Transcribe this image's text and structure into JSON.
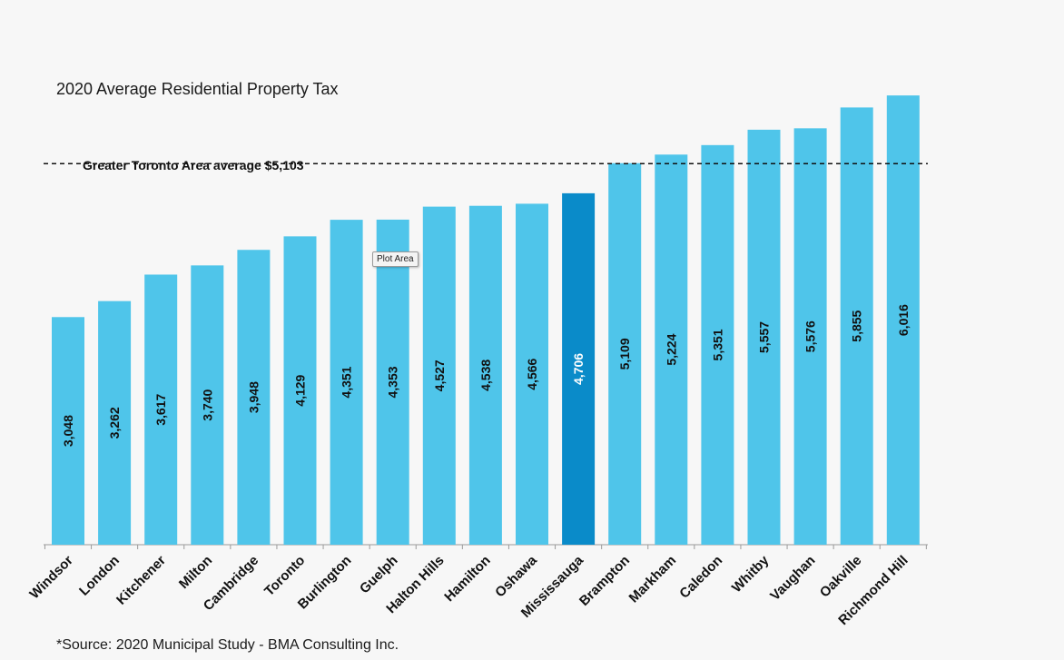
{
  "chart_data": {
    "type": "bar",
    "title": "2020 Average Residential Property Tax",
    "categories": [
      "Windsor",
      "London",
      "Kitchener",
      "Milton",
      "Cambridge",
      "Toronto",
      "Burlington",
      "Guelph",
      "Halton Hills",
      "Hamilton",
      "Oshawa",
      "Mississauga",
      "Brampton",
      "Markham",
      "Caledon",
      "Whitby",
      "Vaughan",
      "Oakville",
      "Richmond Hill"
    ],
    "values": [
      3048,
      3262,
      3617,
      3740,
      3948,
      4129,
      4351,
      4353,
      4527,
      4538,
      4566,
      4706,
      5109,
      5224,
      5351,
      5557,
      5576,
      5855,
      6016
    ],
    "value_labels": [
      "3,048",
      "3,262",
      "3,617",
      "3,740",
      "3,948",
      "4,129",
      "4,351",
      "4,353",
      "4,527",
      "4,538",
      "4,566",
      "4,706",
      "5,109",
      "5,224",
      "5,351",
      "5,557",
      "5,576",
      "5,855",
      "6,016"
    ],
    "highlight_category": "Mississauga",
    "reference_line": {
      "value": 5103,
      "label": "Greater Toronto Area average $5,103",
      "style": "dashed"
    },
    "xlabel": "",
    "ylabel": "",
    "ylim": [
      0,
      6200
    ],
    "grid": false,
    "legend": "none",
    "colors": {
      "bar": "#4fc5ea",
      "highlight": "#0a8bc9",
      "reference": "#111111"
    }
  },
  "source": "*Source: 2020 Municipal Study - BMA Consulting Inc.",
  "tooltip": "Plot Area"
}
